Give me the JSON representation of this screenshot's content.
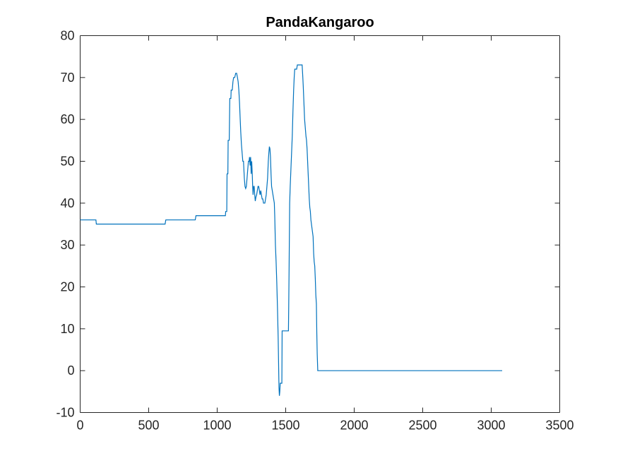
{
  "chart_data": {
    "type": "line",
    "title": "PandaKangaroo",
    "xlabel": "",
    "ylabel": "",
    "xlim": [
      0,
      3500
    ],
    "ylim": [
      -10,
      80
    ],
    "x_ticks": [
      0,
      500,
      1000,
      1500,
      2000,
      2500,
      3000,
      3500
    ],
    "y_ticks": [
      -10,
      0,
      10,
      20,
      30,
      40,
      50,
      60,
      70,
      80
    ],
    "grid": false,
    "legend": "none",
    "line_color": "#0072BD",
    "series": [
      {
        "points": [
          [
            0,
            36
          ],
          [
            115,
            36
          ],
          [
            118,
            35
          ],
          [
            620,
            35
          ],
          [
            625,
            36
          ],
          [
            840,
            36
          ],
          [
            845,
            37
          ],
          [
            1060,
            37
          ],
          [
            1062,
            38
          ],
          [
            1070,
            38
          ],
          [
            1072,
            47
          ],
          [
            1078,
            47
          ],
          [
            1080,
            55
          ],
          [
            1088,
            55
          ],
          [
            1090,
            60
          ],
          [
            1092,
            65
          ],
          [
            1100,
            65
          ],
          [
            1102,
            67
          ],
          [
            1110,
            67
          ],
          [
            1115,
            69
          ],
          [
            1120,
            70
          ],
          [
            1128,
            70
          ],
          [
            1135,
            71
          ],
          [
            1142,
            71
          ],
          [
            1148,
            70
          ],
          [
            1153,
            69
          ],
          [
            1158,
            67
          ],
          [
            1163,
            64
          ],
          [
            1168,
            60
          ],
          [
            1172,
            57
          ],
          [
            1177,
            54
          ],
          [
            1182,
            52
          ],
          [
            1187,
            50
          ],
          [
            1192,
            50
          ],
          [
            1195,
            48
          ],
          [
            1198,
            46
          ],
          [
            1203,
            44
          ],
          [
            1208,
            43.5
          ],
          [
            1213,
            44
          ],
          [
            1218,
            46
          ],
          [
            1223,
            48
          ],
          [
            1228,
            50
          ],
          [
            1233,
            50
          ],
          [
            1236,
            51
          ],
          [
            1240,
            49
          ],
          [
            1244,
            51
          ],
          [
            1248,
            47
          ],
          [
            1252,
            50
          ],
          [
            1256,
            47
          ],
          [
            1259,
            44
          ],
          [
            1262,
            42
          ],
          [
            1266,
            44
          ],
          [
            1270,
            44
          ],
          [
            1274,
            42
          ],
          [
            1278,
            40.5
          ],
          [
            1283,
            41.5
          ],
          [
            1288,
            42
          ],
          [
            1293,
            43
          ],
          [
            1298,
            44
          ],
          [
            1303,
            44
          ],
          [
            1308,
            43
          ],
          [
            1313,
            42
          ],
          [
            1318,
            43
          ],
          [
            1323,
            42
          ],
          [
            1328,
            41
          ],
          [
            1333,
            41
          ],
          [
            1338,
            40
          ],
          [
            1348,
            40
          ],
          [
            1353,
            41
          ],
          [
            1358,
            42
          ],
          [
            1363,
            44
          ],
          [
            1368,
            46
          ],
          [
            1373,
            50
          ],
          [
            1377,
            52
          ],
          [
            1381,
            53.5
          ],
          [
            1385,
            53
          ],
          [
            1389,
            51
          ],
          [
            1393,
            47
          ],
          [
            1397,
            44
          ],
          [
            1402,
            43
          ],
          [
            1407,
            42
          ],
          [
            1412,
            41
          ],
          [
            1417,
            40
          ],
          [
            1420,
            37
          ],
          [
            1425,
            30
          ],
          [
            1430,
            26
          ],
          [
            1435,
            21
          ],
          [
            1440,
            15
          ],
          [
            1445,
            8
          ],
          [
            1448,
            2
          ],
          [
            1451,
            -4
          ],
          [
            1454,
            -6
          ],
          [
            1457,
            -5
          ],
          [
            1460,
            -3
          ],
          [
            1472,
            -3
          ],
          [
            1474,
            9.5
          ],
          [
            1520,
            9.5
          ],
          [
            1522,
            15
          ],
          [
            1525,
            25
          ],
          [
            1529,
            40
          ],
          [
            1533,
            44
          ],
          [
            1538,
            48
          ],
          [
            1543,
            52
          ],
          [
            1548,
            56
          ],
          [
            1553,
            62
          ],
          [
            1558,
            67
          ],
          [
            1562,
            70
          ],
          [
            1566,
            72
          ],
          [
            1580,
            72
          ],
          [
            1585,
            73
          ],
          [
            1620,
            73
          ],
          [
            1625,
            70
          ],
          [
            1628,
            68
          ],
          [
            1633,
            64
          ],
          [
            1638,
            60
          ],
          [
            1643,
            58
          ],
          [
            1648,
            56
          ],
          [
            1652,
            55
          ],
          [
            1656,
            53
          ],
          [
            1660,
            50
          ],
          [
            1664,
            47
          ],
          [
            1668,
            44
          ],
          [
            1672,
            41
          ],
          [
            1676,
            39
          ],
          [
            1680,
            38
          ],
          [
            1684,
            36
          ],
          [
            1688,
            35
          ],
          [
            1692,
            34
          ],
          [
            1696,
            33
          ],
          [
            1700,
            32
          ],
          [
            1704,
            28
          ],
          [
            1708,
            26
          ],
          [
            1712,
            25
          ],
          [
            1716,
            22
          ],
          [
            1720,
            18
          ],
          [
            1724,
            16
          ],
          [
            1727,
            9
          ],
          [
            1730,
            4
          ],
          [
            1734,
            0
          ],
          [
            3080,
            0
          ]
        ]
      }
    ]
  }
}
